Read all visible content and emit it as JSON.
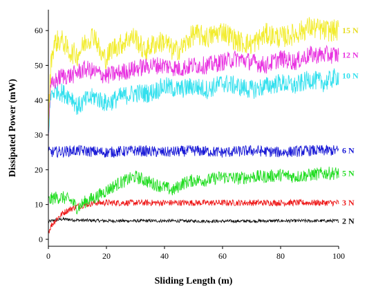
{
  "chart_data": {
    "type": "line",
    "title": "",
    "xlabel": "Sliding Length (m)",
    "ylabel": "Dissipated Power (mW)",
    "xlim": [
      0,
      100
    ],
    "ylim": [
      -2,
      66
    ],
    "xticks": [
      0,
      20,
      40,
      60,
      80,
      100
    ],
    "yticks": [
      0,
      10,
      20,
      30,
      40,
      50,
      60
    ],
    "grid": false,
    "legend": "inline labels at right end of each series",
    "series": [
      {
        "name": "15 N",
        "color": "#f2ec2e",
        "x": [
          0,
          0.5,
          1,
          2,
          3,
          5,
          7,
          10,
          13,
          16,
          18,
          20,
          22,
          25,
          28,
          30,
          33,
          36,
          40,
          43,
          46,
          50,
          55,
          60,
          65,
          70,
          75,
          80,
          85,
          90,
          95,
          100
        ],
        "y": [
          32,
          44,
          52,
          56,
          57,
          57,
          54,
          53,
          57,
          59,
          53,
          52,
          55,
          56,
          58,
          58,
          54,
          56,
          57,
          54,
          55,
          59,
          58,
          60,
          57,
          56,
          59,
          58,
          59,
          61,
          60,
          60
        ],
        "noise": 3.2
      },
      {
        "name": "12 N",
        "color": "#e833e0",
        "x": [
          0,
          0.5,
          1,
          3,
          5,
          8,
          10,
          13,
          16,
          20,
          25,
          30,
          35,
          40,
          45,
          50,
          55,
          60,
          65,
          70,
          75,
          80,
          85,
          90,
          95,
          100
        ],
        "y": [
          30,
          41,
          44,
          46,
          47,
          47,
          48,
          49,
          48,
          47,
          48,
          49,
          50,
          50,
          49,
          50,
          50,
          51,
          52,
          51,
          50,
          52,
          51,
          53,
          53,
          53
        ],
        "noise": 2.6
      },
      {
        "name": "10 N",
        "color": "#33e0ee",
        "x": [
          0,
          0.5,
          1,
          3,
          5,
          8,
          10,
          13,
          16,
          20,
          25,
          30,
          35,
          40,
          45,
          50,
          55,
          60,
          65,
          70,
          75,
          80,
          85,
          90,
          95,
          100
        ],
        "y": [
          30,
          38,
          42,
          43,
          42,
          41,
          38,
          40,
          41,
          39,
          41,
          42,
          42,
          44,
          43,
          44,
          43,
          45,
          44,
          43,
          44,
          45,
          44,
          46,
          45,
          47
        ],
        "noise": 2.8
      },
      {
        "name": "6 N",
        "color": "#1a1ad6",
        "x": [
          0,
          10,
          20,
          30,
          40,
          50,
          60,
          70,
          80,
          90,
          100
        ],
        "y": [
          25,
          25.5,
          25,
          25.5,
          25,
          25.5,
          25,
          25.5,
          25,
          25.5,
          25.5
        ],
        "noise": 1.6
      },
      {
        "name": "5 N",
        "color": "#22dd22",
        "x": [
          0,
          2,
          5,
          8,
          10,
          13,
          16,
          20,
          24,
          27,
          30,
          33,
          36,
          40,
          43,
          46,
          50,
          55,
          60,
          65,
          70,
          75,
          80,
          85,
          90,
          95,
          100
        ],
        "y": [
          11,
          12,
          12,
          11,
          9,
          11,
          12,
          14,
          16,
          17,
          18,
          17,
          16,
          15,
          14,
          16,
          17,
          17,
          18,
          17.5,
          18,
          18,
          18.5,
          18,
          18.5,
          19,
          19
        ],
        "noise": 1.9
      },
      {
        "name": "3 N",
        "color": "#ee1a1a",
        "x": [
          0,
          1,
          2,
          3,
          5,
          7,
          10,
          13,
          16,
          20,
          25,
          30,
          40,
          50,
          60,
          70,
          80,
          90,
          100
        ],
        "y": [
          2,
          4,
          5,
          6,
          7.5,
          8.5,
          9.5,
          10,
          10.5,
          10.5,
          10.5,
          10.5,
          10.5,
          10.5,
          10.5,
          10.5,
          10.5,
          10.5,
          10.5
        ],
        "noise": 0.9
      },
      {
        "name": "2 N",
        "color": "#111111",
        "x": [
          0,
          2,
          5,
          10,
          20,
          40,
          60,
          80,
          100
        ],
        "y": [
          5,
          5.5,
          5.8,
          5.5,
          5.3,
          5.3,
          5.2,
          5.3,
          5.3
        ],
        "noise": 0.45
      }
    ]
  }
}
